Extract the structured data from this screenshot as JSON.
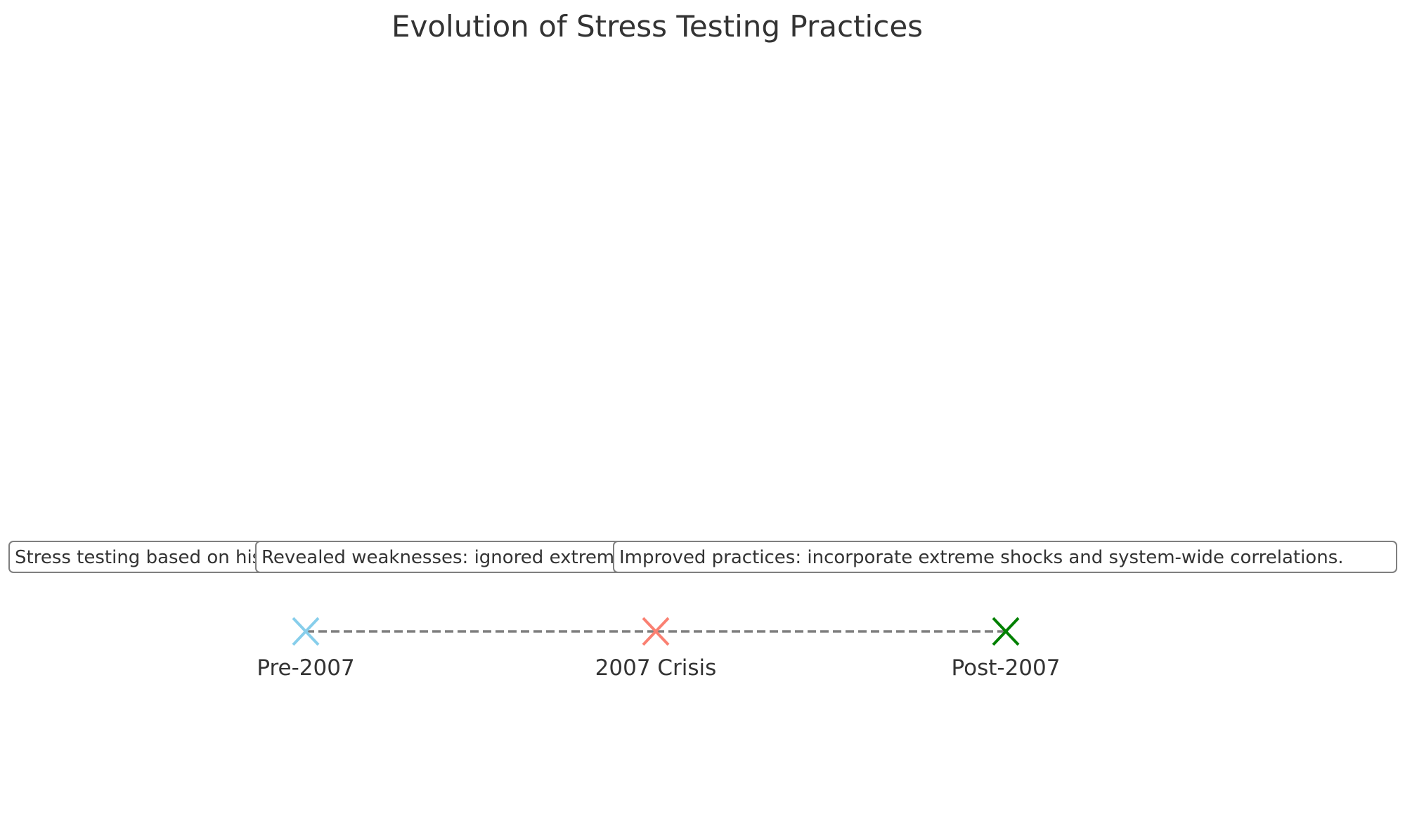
{
  "title": "Evolution of Stress Testing Practices",
  "events": [
    {
      "label": "Pre-2007",
      "description": "Stress testing based on historical data; limited scenarios.",
      "color": "#87ceeb",
      "icon": "x-marker-icon"
    },
    {
      "label": "2007 Crisis",
      "description": "Revealed weaknesses: ignored extreme market events.",
      "color": "#fa8072",
      "icon": "x-marker-icon"
    },
    {
      "label": "Post-2007",
      "description": "Improved practices: incorporate extreme shocks and system-wide correlations.",
      "color": "#008000",
      "icon": "x-marker-icon"
    }
  ],
  "connector_color": "#7f7f7f"
}
